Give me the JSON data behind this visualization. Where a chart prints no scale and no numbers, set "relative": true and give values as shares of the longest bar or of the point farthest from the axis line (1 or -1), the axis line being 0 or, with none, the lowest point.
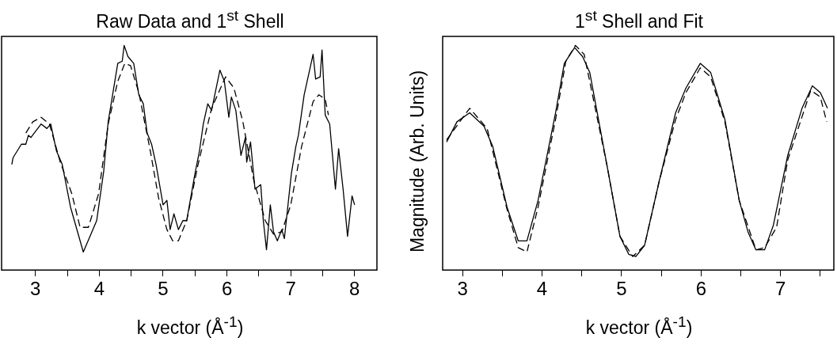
{
  "chart_data": [
    {
      "type": "line",
      "title": "Raw Data and 1$^{st}$ Shell",
      "xlabel": "k vector (Å$^{-1}$)",
      "relative": true,
      "xlim": [
        2.47,
        8.35
      ],
      "xticks": [
        3,
        {
          "value": 3.5,
          "label": null
        },
        4,
        {
          "value": 4.5,
          "label": null
        },
        5,
        {
          "value": 5.5,
          "label": null
        },
        6,
        {
          "value": 6.5,
          "label": null
        },
        7,
        {
          "value": 7.5,
          "label": null
        },
        8
      ],
      "grid": false,
      "legend": false,
      "marker": "none",
      "series": [
        {
          "color": "#000000",
          "line_style": "solid",
          "x": [
            2.63,
            2.65,
            2.78,
            2.85,
            2.89,
            2.93,
            3.09,
            3.18,
            3.24,
            3.33,
            3.42,
            3.55,
            3.75,
            3.96,
            4.07,
            4.14,
            4.29,
            4.36,
            4.39,
            4.45,
            4.54,
            4.62,
            4.69,
            4.75,
            4.82,
            4.89,
            5.0,
            5.06,
            5.11,
            5.17,
            5.24,
            5.31,
            5.37,
            5.5,
            5.57,
            5.63,
            5.7,
            5.76,
            5.81,
            5.89,
            5.96,
            6.03,
            6.07,
            6.14,
            6.22,
            6.29,
            6.31,
            6.37,
            6.44,
            6.53,
            6.57,
            6.62,
            6.68,
            6.73,
            6.79,
            6.86,
            6.9,
            7.01,
            7.08,
            7.12,
            7.21,
            7.35,
            7.39,
            7.46,
            7.49,
            7.54,
            7.61,
            7.7,
            7.75,
            7.82,
            7.89,
            7.96,
            8.0
          ],
          "values": [
            0.47,
            0.5,
            0.56,
            0.56,
            0.6,
            0.59,
            0.65,
            0.63,
            0.65,
            0.53,
            0.47,
            0.28,
            0.08,
            0.22,
            0.44,
            0.66,
            0.92,
            0.93,
            1.0,
            0.95,
            0.92,
            0.78,
            0.74,
            0.61,
            0.56,
            0.47,
            0.29,
            0.31,
            0.18,
            0.25,
            0.18,
            0.22,
            0.22,
            0.43,
            0.53,
            0.65,
            0.74,
            0.71,
            0.78,
            0.89,
            0.84,
            0.68,
            0.77,
            0.71,
            0.51,
            0.59,
            0.48,
            0.57,
            0.36,
            0.38,
            0.22,
            0.09,
            0.29,
            0.17,
            0.13,
            0.18,
            0.14,
            0.43,
            0.55,
            0.6,
            0.78,
            0.96,
            0.85,
            0.86,
            0.98,
            0.69,
            0.65,
            0.36,
            0.54,
            0.36,
            0.15,
            0.33,
            0.29
          ]
        },
        {
          "color": "#000000",
          "line_style": "dashed",
          "x": [
            2.85,
            2.96,
            3.09,
            3.22,
            3.39,
            3.57,
            3.7,
            3.83,
            3.99,
            4.14,
            4.29,
            4.4,
            4.49,
            4.62,
            4.8,
            4.93,
            5.06,
            5.15,
            5.24,
            5.37,
            5.54,
            5.76,
            5.98,
            6.11,
            6.25,
            6.42,
            6.6,
            6.73,
            6.86,
            7.0,
            7.17,
            7.35,
            7.44,
            7.54,
            7.59
          ],
          "values": [
            0.61,
            0.66,
            0.68,
            0.65,
            0.48,
            0.34,
            0.19,
            0.19,
            0.34,
            0.65,
            0.84,
            0.92,
            0.91,
            0.79,
            0.53,
            0.32,
            0.18,
            0.13,
            0.13,
            0.22,
            0.46,
            0.72,
            0.86,
            0.81,
            0.66,
            0.4,
            0.22,
            0.16,
            0.17,
            0.29,
            0.55,
            0.75,
            0.78,
            0.76,
            0.69
          ]
        }
      ]
    },
    {
      "type": "line",
      "title": "1$^{st}$ Shell and Fit",
      "xlabel": "k vector (Å$^{-1}$)",
      "ylabel": "Magnitude (Arb. Units)",
      "relative": true,
      "xlim": [
        2.75,
        7.67
      ],
      "xticks": [
        3,
        {
          "value": 3.5,
          "label": null
        },
        4,
        {
          "value": 4.5,
          "label": null
        },
        5,
        {
          "value": 5.5,
          "label": null
        },
        6,
        {
          "value": 6.5,
          "label": null
        },
        7,
        {
          "value": 7.5,
          "label": null
        }
      ],
      "grid": false,
      "legend": false,
      "marker": "none",
      "series": [
        {
          "color": "#000000",
          "line_style": "solid",
          "x": [
            2.8,
            2.93,
            3.09,
            3.27,
            3.38,
            3.56,
            3.7,
            3.81,
            3.95,
            4.17,
            4.28,
            4.41,
            4.51,
            4.6,
            4.82,
            4.98,
            5.09,
            5.18,
            5.29,
            5.47,
            5.68,
            5.81,
            5.99,
            6.12,
            6.3,
            6.48,
            6.59,
            6.69,
            6.8,
            6.91,
            7.09,
            7.27,
            7.4,
            7.5,
            7.59
          ],
          "values": [
            0.57,
            0.66,
            0.7,
            0.64,
            0.55,
            0.28,
            0.13,
            0.13,
            0.31,
            0.7,
            0.92,
            0.99,
            0.95,
            0.88,
            0.46,
            0.15,
            0.07,
            0.06,
            0.11,
            0.39,
            0.7,
            0.81,
            0.92,
            0.88,
            0.67,
            0.31,
            0.17,
            0.09,
            0.09,
            0.2,
            0.51,
            0.72,
            0.82,
            0.79,
            0.72
          ]
        },
        {
          "color": "#000000",
          "line_style": "dashed",
          "x": [
            2.8,
            3.09,
            3.31,
            3.56,
            3.7,
            3.81,
            3.95,
            4.17,
            4.3,
            4.42,
            4.53,
            4.82,
            4.98,
            5.14,
            5.29,
            5.47,
            5.68,
            5.81,
            5.99,
            6.12,
            6.3,
            6.48,
            6.69,
            6.8,
            6.95,
            7.09,
            7.38,
            7.5,
            7.58
          ],
          "values": [
            0.58,
            0.72,
            0.63,
            0.27,
            0.1,
            0.08,
            0.28,
            0.67,
            0.93,
            1.0,
            0.96,
            0.46,
            0.15,
            0.06,
            0.11,
            0.39,
            0.67,
            0.79,
            0.9,
            0.86,
            0.66,
            0.31,
            0.09,
            0.1,
            0.19,
            0.49,
            0.8,
            0.77,
            0.66
          ]
        }
      ]
    }
  ]
}
